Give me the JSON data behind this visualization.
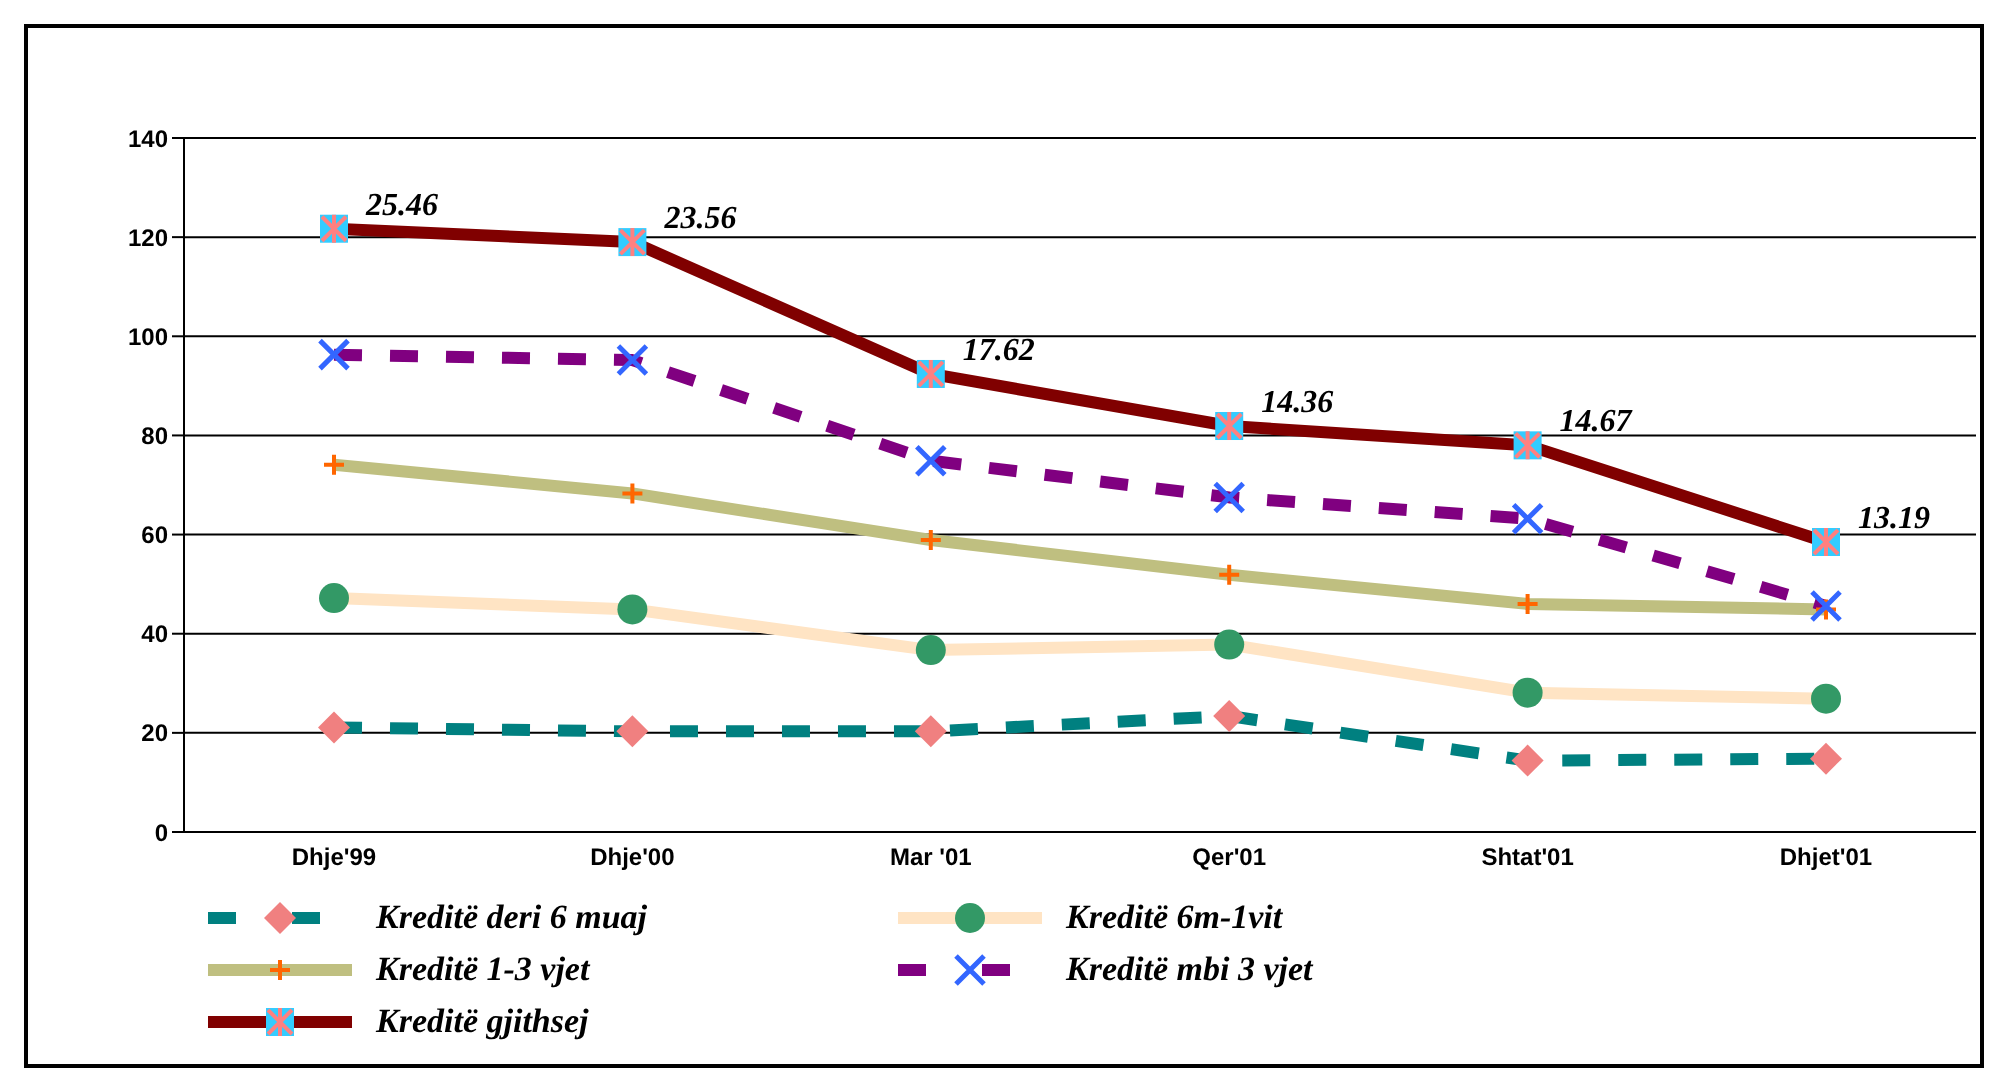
{
  "chart_data": {
    "type": "line",
    "categories": [
      "Dhje'99",
      "Dhje'00",
      "Mar '01",
      "Qer'01",
      "Shtat'01",
      "Dhjet'01"
    ],
    "series": [
      {
        "name": "Kreditë deri 6 muaj",
        "color": "#008080",
        "line_style": "dashed",
        "marker": "diamond",
        "values": [
          21.1,
          20.3,
          20.3,
          23.4,
          14.4,
          14.8
        ]
      },
      {
        "name": "Kreditë 6m-1vit",
        "color": "#ffe4c4",
        "line_style": "solid",
        "marker": "circle",
        "values": [
          47.2,
          44.9,
          36.7,
          37.8,
          28.1,
          26.9
        ]
      },
      {
        "name": "Kreditë 1-3 vjet",
        "color": "#bfbf80",
        "line_style": "solid",
        "marker": "cross",
        "values": [
          74.1,
          68.3,
          58.9,
          51.9,
          46.0,
          44.9
        ]
      },
      {
        "name": "Kreditë mbi 3 vjet",
        "color": "#800080",
        "line_style": "dashed",
        "marker": "cross",
        "values": [
          96.3,
          95.2,
          74.9,
          67.5,
          63.2,
          45.6
        ]
      },
      {
        "name": "Kreditë gjithsej",
        "color": "#800000",
        "line_style": "solid",
        "marker": "square",
        "values": [
          121.7,
          119.0,
          92.4,
          81.9,
          78.0,
          58.5
        ]
      }
    ],
    "annotations": [
      {
        "text": "25.46",
        "x": "Dhje'99",
        "y": 121.7
      },
      {
        "text": "23.56",
        "x": "Dhje'00",
        "y": 119.0
      },
      {
        "text": "17.62",
        "x": "Mar '01",
        "y": 92.4
      },
      {
        "text": "14.36",
        "x": "Qer'01",
        "y": 81.9
      },
      {
        "text": "14.67",
        "x": "Shtat'01",
        "y": 78.0
      },
      {
        "text": "13.19",
        "x": "Dhjet'01",
        "y": 58.5
      }
    ],
    "ylim": [
      0,
      140
    ],
    "yticks": [
      0,
      20,
      40,
      60,
      80,
      100,
      120,
      140
    ],
    "grid": "y",
    "legend": "bottom"
  }
}
